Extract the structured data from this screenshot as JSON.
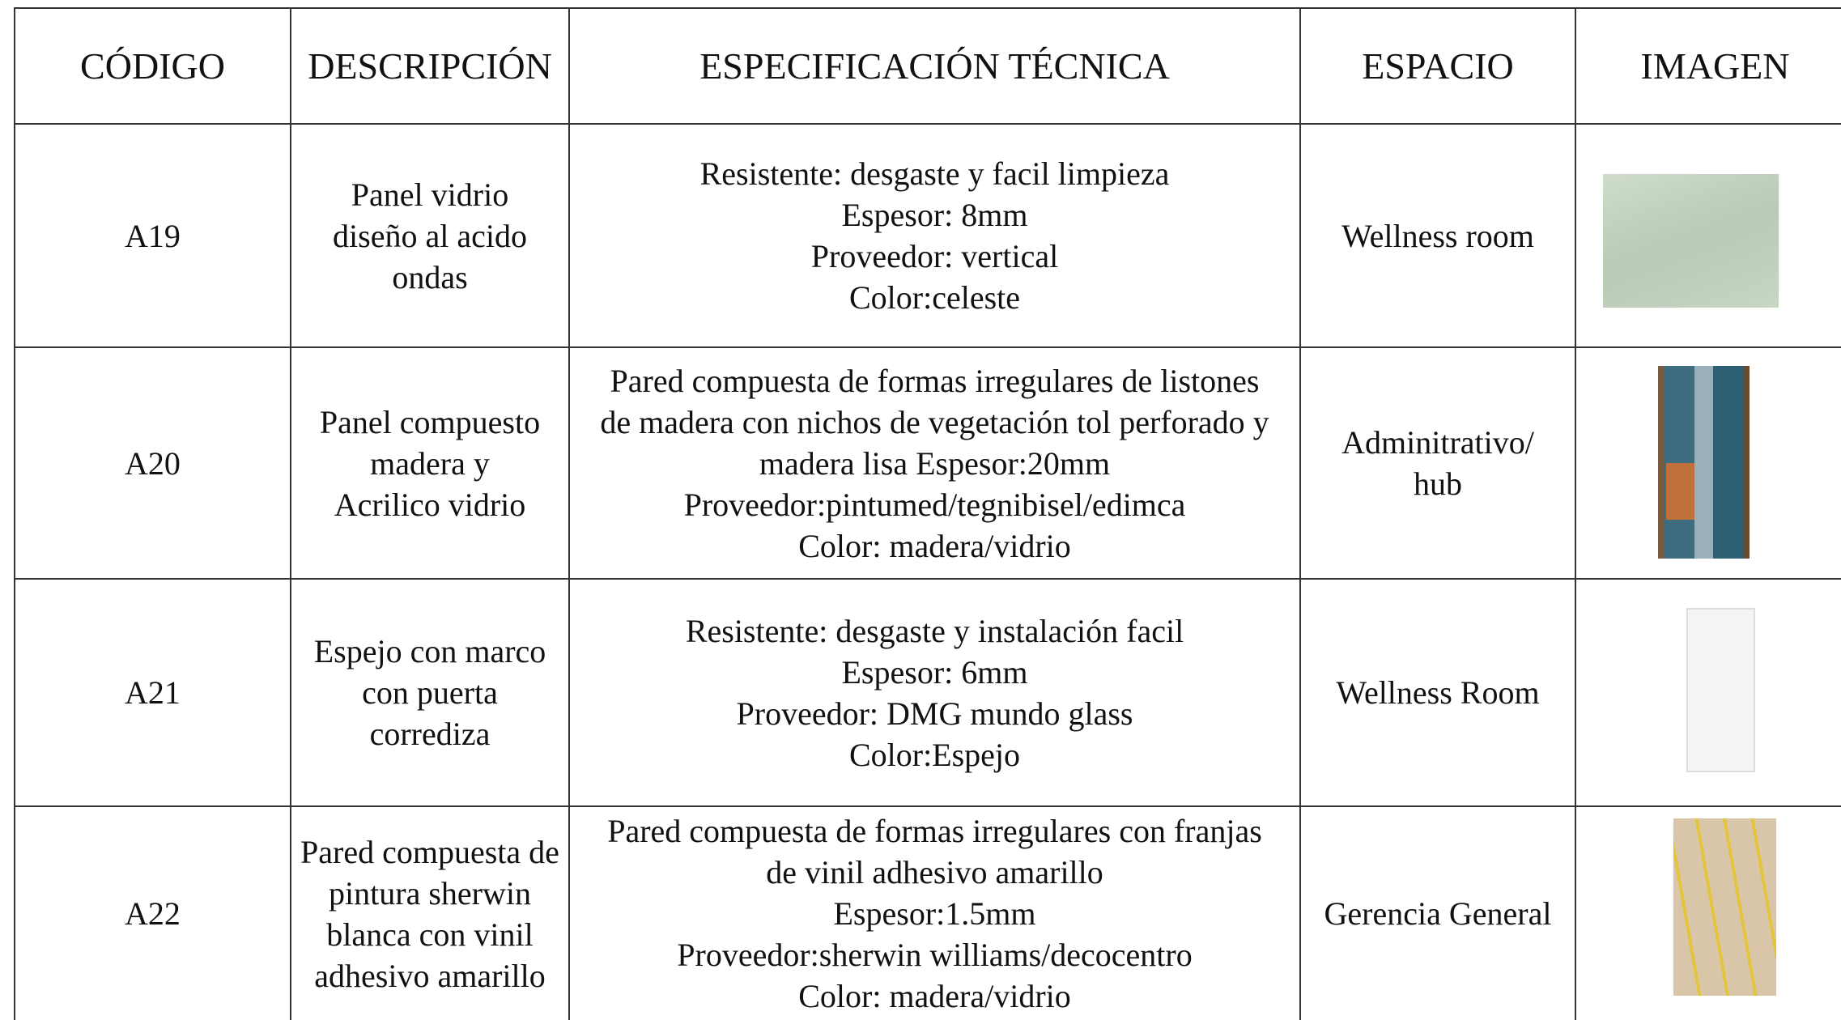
{
  "header": {
    "columns": [
      "CÓDIGO",
      "DESCRIPCIÓN",
      "ESPECIFICACIÓN TÉCNICA",
      "ESPACIO",
      "IMAGEN"
    ]
  },
  "rows": [
    {
      "code": "A19",
      "description": [
        "Panel vidrio",
        "diseño al acido",
        "ondas"
      ],
      "specification": [
        "Resistente: desgaste y facil limpieza",
        "Espesor: 8mm",
        "Proveedor: vertical",
        "Color:celeste"
      ],
      "space": [
        "Wellness room"
      ]
    },
    {
      "code": "A20",
      "description": [
        "Panel compuesto",
        "madera y",
        "Acrilico vidrio"
      ],
      "specification": [
        "Pared compuesta de formas irregulares de listones",
        "de madera con nichos de vegetación tol perforado y",
        "madera lisa Espesor:20mm",
        "Proveedor:pintumed/tegnibisel/edimca",
        "Color: madera/vidrio"
      ],
      "space": [
        "Adminitrativo/",
        "hub"
      ]
    },
    {
      "code": "A21",
      "description": [
        "Espejo con marco",
        "con puerta",
        "corrediza"
      ],
      "specification": [
        "Resistente: desgaste y instalación facil",
        "Espesor: 6mm",
        "Proveedor: DMG mundo glass",
        "Color:Espejo"
      ],
      "space": [
        "Wellness Room"
      ]
    },
    {
      "code": "A22",
      "description": [
        "Pared compuesta de",
        "pintura sherwin",
        "blanca con vinil",
        "adhesivo amarillo"
      ],
      "specification": [
        "Pared compuesta de formas irregulares con franjas",
        "de vinil adhesivo amarillo",
        "Espesor:1.5mm",
        "Proveedor:sherwin williams/decocentro",
        "Color: madera/vidrio"
      ],
      "space": [
        "Gerencia General"
      ]
    }
  ]
}
